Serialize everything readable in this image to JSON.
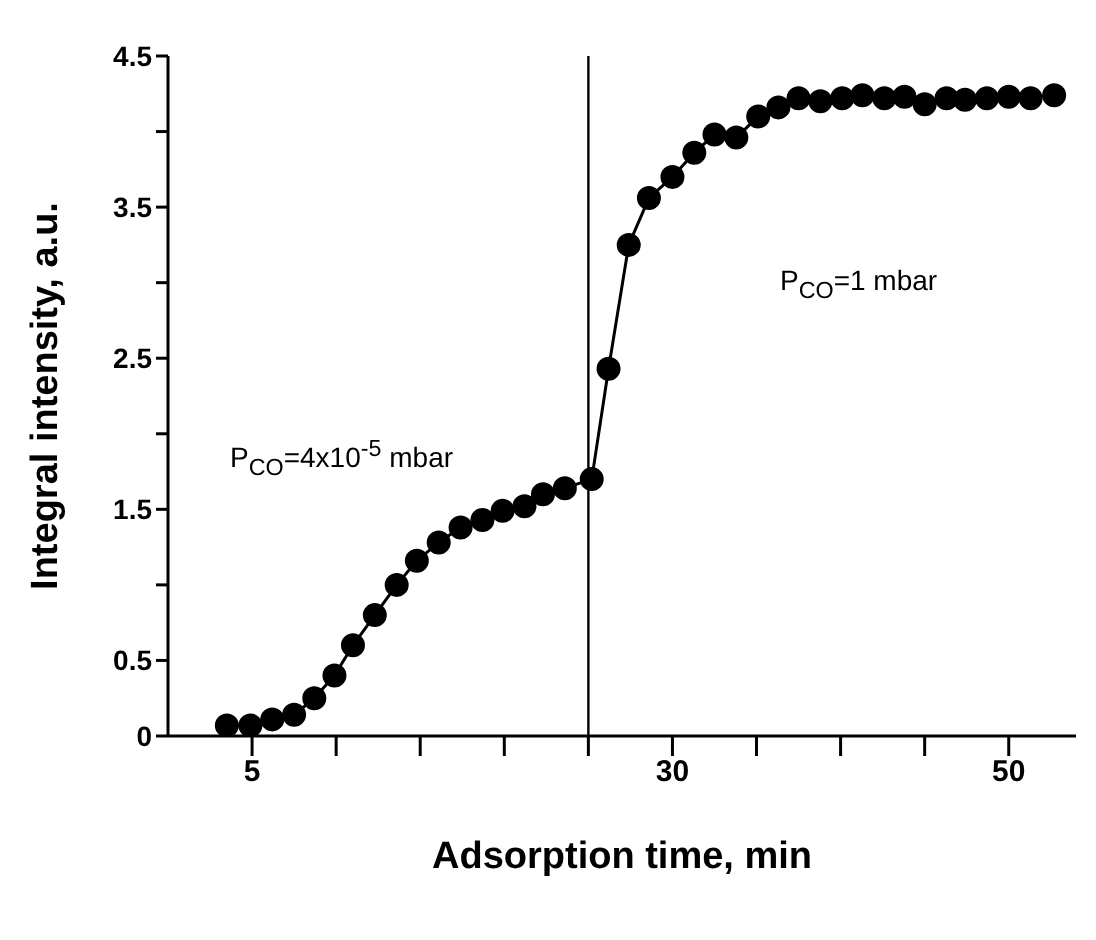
{
  "chart_data": {
    "type": "line",
    "xlabel": "Adsorption time, min",
    "ylabel": "Integral intensity, a.u.",
    "x": [
      3.5,
      4.9,
      6.2,
      7.5,
      8.7,
      9.9,
      11.0,
      12.3,
      13.6,
      14.8,
      16.1,
      17.4,
      18.7,
      19.9,
      21.2,
      22.3,
      23.6,
      25.2,
      26.2,
      27.4,
      28.6,
      30.0,
      31.3,
      32.5,
      33.8,
      35.1,
      36.3,
      37.5,
      38.8,
      40.1,
      41.3,
      42.6,
      43.8,
      45.0,
      46.3,
      47.4,
      48.7,
      50.0,
      51.3,
      52.7
    ],
    "series": [
      {
        "color": "#000000",
        "values": [
          0.07,
          0.07,
          0.11,
          0.14,
          0.25,
          0.4,
          0.6,
          0.8,
          1.0,
          1.16,
          1.28,
          1.38,
          1.43,
          1.49,
          1.52,
          1.6,
          1.64,
          1.7,
          2.43,
          3.25,
          3.56,
          3.7,
          3.86,
          3.98,
          3.96,
          4.1,
          4.16,
          4.22,
          4.2,
          4.22,
          4.24,
          4.22,
          4.23,
          4.18,
          4.22,
          4.21,
          4.22,
          4.23,
          4.22,
          4.24
        ]
      }
    ],
    "xlim": [
      0,
      54
    ],
    "xticks": [
      5,
      {
        "value": 10,
        "label": null
      },
      {
        "value": 15,
        "label": null
      },
      {
        "value": 20,
        "label": null
      },
      {
        "value": 25,
        "label": null
      },
      30,
      {
        "value": 35,
        "label": null
      },
      {
        "value": 40,
        "label": null
      },
      {
        "value": 45,
        "label": null
      },
      50
    ],
    "ylim": [
      0,
      4.5
    ],
    "yticks": [
      0,
      0.5,
      {
        "value": 1,
        "label": null
      },
      1.5,
      {
        "value": 2,
        "label": null
      },
      2.5,
      {
        "value": 3,
        "label": null
      },
      3.5,
      {
        "value": 4,
        "label": null
      },
      4.5
    ],
    "ref_lines": [
      {
        "axis": "x",
        "value": 25,
        "color": "#000000"
      }
    ],
    "annotations": [
      "P$_{CO}$=4x10$^{-5}$ mbar",
      "P$_{CO}$=1 mbar"
    ],
    "marker": "circle",
    "line_style": "solid",
    "grid": false
  }
}
